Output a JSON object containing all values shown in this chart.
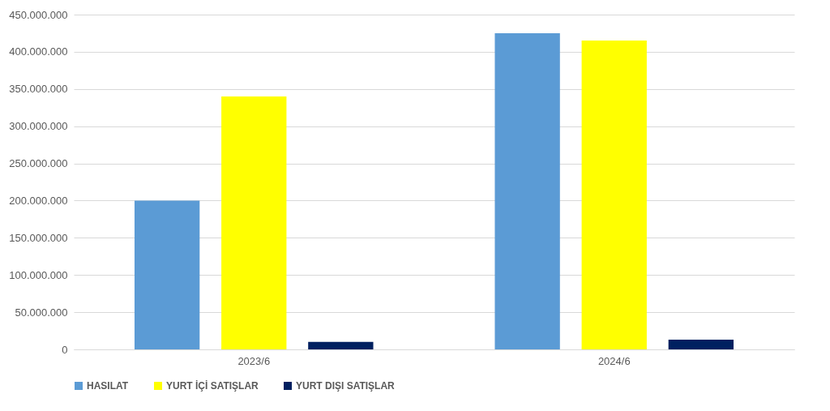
{
  "chart_data": {
    "type": "bar",
    "categories": [
      "2023/6",
      "2024/6"
    ],
    "series": [
      {
        "name": "HASILAT",
        "color": "#5b9bd5",
        "values": [
          200000000,
          425000000
        ]
      },
      {
        "name": "YURT İÇİ SATIŞLAR",
        "color": "#ffff00",
        "values": [
          340000000,
          415000000
        ]
      },
      {
        "name": "YURT DIŞI SATIŞLAR",
        "color": "#002060",
        "values": [
          10000000,
          13000000
        ]
      }
    ],
    "ylim": [
      0,
      450000000
    ],
    "yticks": [
      {
        "value": 0,
        "label": "0"
      },
      {
        "value": 50000000,
        "label": "50.000.000"
      },
      {
        "value": 100000000,
        "label": "100.000.000"
      },
      {
        "value": 150000000,
        "label": "150.000.000"
      },
      {
        "value": 200000000,
        "label": "200.000.000"
      },
      {
        "value": 250000000,
        "label": "250.000.000"
      },
      {
        "value": 300000000,
        "label": "300.000.000"
      },
      {
        "value": 350000000,
        "label": "350.000.000"
      },
      {
        "value": 400000000,
        "label": "400.000.000"
      },
      {
        "value": 450000000,
        "label": "450.000.000"
      }
    ],
    "grid": "y",
    "legend": "bottom"
  }
}
